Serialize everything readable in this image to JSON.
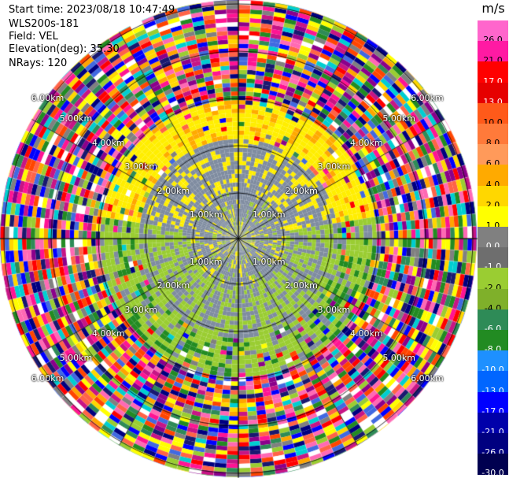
{
  "header": {
    "start_time": "Start time: 2023/08/18 10:47:49",
    "instrument": "WLS200s-181",
    "field": "Field: VEL",
    "elevation": "Elevation(deg): 35.30",
    "nrays": "NRays: 120"
  },
  "range_rings": {
    "labels": [
      "1.00km",
      "2.00km",
      "3.00km",
      "4.00km",
      "5.00km",
      "6.00km"
    ]
  },
  "colorbar": {
    "unit": "m/s",
    "levels": [
      "26.0",
      "21.0",
      "17.0",
      "13.0",
      "10.0",
      "8.0",
      "6.0",
      "4.0",
      "2.0",
      "1.0",
      "0.0",
      "-1.0",
      "-2.0",
      "-4.0",
      "-6.0",
      "-8.0",
      "-10.0",
      "-13.0",
      "-17.0",
      "-21.0",
      "-26.0",
      "-30.0"
    ],
    "colors": [
      "#ff66cc",
      "#ff1aa3",
      "#ff0000",
      "#e60000",
      "#ff5a1a",
      "#ff7a3a",
      "#ff9a5a",
      "#ffaa00",
      "#ffd700",
      "#ffff00",
      "#808080",
      "#6e6e6e",
      "#9acd32",
      "#7fb02a",
      "#2e8b57",
      "#228b22",
      "#1e90ff",
      "#0066ff",
      "#0000ff",
      "#0000aa",
      "#000080",
      "#000050"
    ]
  },
  "palette": [
    "#ff69b4",
    "#ff1493",
    "#ff0000",
    "#ff4500",
    "#ffa500",
    "#ffff00",
    "#ffd700",
    "#9acd32",
    "#228b22",
    "#2e8b57",
    "#0000ff",
    "#000080",
    "#191970",
    "#808080",
    "#ffffff",
    "#8b008b",
    "#c71585",
    "#ff6347",
    "#00ced1",
    "#4169e1"
  ],
  "near_field_colors": {
    "yellow": "#ffee00",
    "gray": "#7f8ca0",
    "green": "#9acd32",
    "orange": "#ffaa00"
  }
}
